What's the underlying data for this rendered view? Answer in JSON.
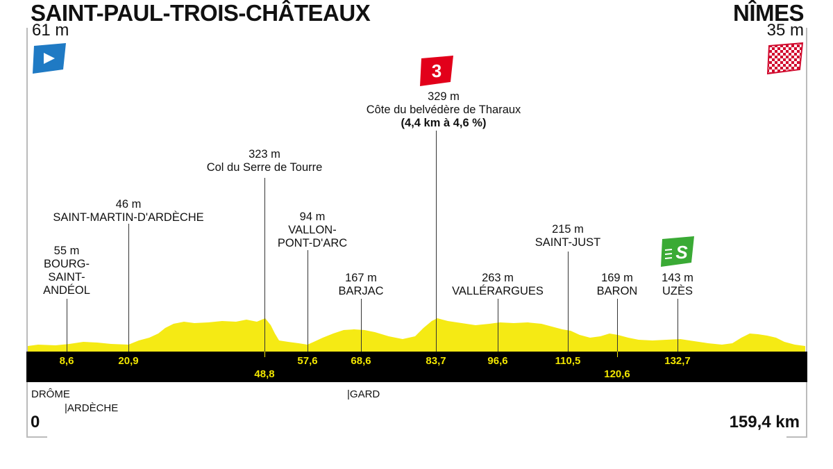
{
  "start": {
    "town": "SAINT-PAUL-TROIS-CHÂTEAUX",
    "altitude": "61 m"
  },
  "finish": {
    "town": "NÎMES",
    "altitude": "35 m"
  },
  "climb_category": "3",
  "sprint_label": "S",
  "landmarks": [
    {
      "alt": "55 m",
      "name": "BOURG-\nSAINT-\nANDÉOL"
    },
    {
      "alt": "46 m",
      "name": "SAINT-MARTIN-D'ARDÈCHE"
    },
    {
      "alt": "323 m",
      "name": "Col du Serre de Tourre"
    },
    {
      "alt": "94 m",
      "name": "VALLON-\nPONT-D'ARC"
    },
    {
      "alt": "167 m",
      "name": "BARJAC"
    },
    {
      "alt": "329 m",
      "name": "Côte du belvédère de Tharaux",
      "detail": "(4,4 km à 4,6 %)"
    },
    {
      "alt": "263 m",
      "name": "VALLÉRARGUES"
    },
    {
      "alt": "215 m",
      "name": "SAINT-JUST"
    },
    {
      "alt": "169 m",
      "name": "BARON"
    },
    {
      "alt": "143 m",
      "name": "UZÈS"
    }
  ],
  "km_marks": [
    "8,6",
    "20,9",
    "48,8",
    "57,6",
    "68,6",
    "83,7",
    "96,6",
    "110,5",
    "120,6",
    "132,7"
  ],
  "regions": {
    "drome": "DRÔME",
    "ardeche": "ARDÈCHE",
    "gard": "GARD"
  },
  "distance_start": "0",
  "distance_total": "159,4 km",
  "colors": {
    "profile": "#f5ea14",
    "bar": "#000000",
    "km_text": "#f2e600",
    "start_flag": "#1f7ac4",
    "climb_flag": "#e2001a",
    "sprint_flag": "#3aaa35"
  }
}
